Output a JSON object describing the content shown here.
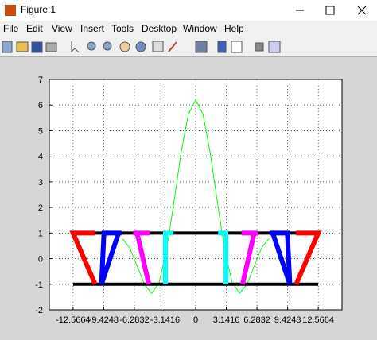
{
  "window": {
    "title": "Figure 1",
    "menu": [
      "File",
      "Edit",
      "View",
      "Insert",
      "Tools",
      "Desktop",
      "Window",
      "Help"
    ]
  },
  "chart_data": {
    "type": "line",
    "xlim": [
      -15,
      15
    ],
    "ylim": [
      -2,
      7
    ],
    "xticks": [
      -12.5664,
      -9.4248,
      -6.2832,
      -3.1416,
      0,
      3.1416,
      6.2832,
      9.4248,
      12.5664
    ],
    "yticks": [
      -2,
      -1,
      0,
      1,
      2,
      3,
      4,
      5,
      6,
      7
    ],
    "grid": true,
    "series": [
      {
        "color": "#00ff00",
        "width": 1,
        "x": [
          -7.5,
          -6.75,
          -6,
          -5.25,
          -4.5,
          -3.75,
          -3,
          -2.25,
          -1.5,
          -0.75,
          0,
          0.75,
          1.5,
          2.25,
          3,
          3.75,
          4.5,
          5.25,
          6,
          6.75,
          7.5
        ],
        "values": [
          0.78,
          0.41,
          -0.29,
          -1.01,
          -1.35,
          -0.94,
          0.29,
          2.14,
          4.12,
          5.64,
          6.2,
          5.64,
          4.12,
          2.14,
          0.29,
          -0.94,
          -1.35,
          -1.01,
          -0.29,
          0.41,
          0.78
        ]
      },
      {
        "color": "#000000",
        "width": 4,
        "x": [
          -12.5664,
          12.5664
        ],
        "values": [
          1,
          1
        ]
      },
      {
        "color": "#000000",
        "width": 4,
        "x": [
          -12.5664,
          12.5664
        ],
        "values": [
          -1,
          -1
        ]
      },
      {
        "color": "#ff0000",
        "width": 6,
        "x": [
          -10.3,
          -12.5664,
          -10.3
        ],
        "values": [
          1,
          1,
          -1
        ]
      },
      {
        "color": "#ff0000",
        "width": 6,
        "x": [
          10.3,
          12.5664,
          10.3
        ],
        "values": [
          1,
          1,
          -1
        ]
      },
      {
        "color": "#0000ff",
        "width": 6,
        "x": [
          -7.6,
          -9.4,
          -9.65,
          -7.9
        ],
        "values": [
          1,
          1,
          -1,
          1
        ]
      },
      {
        "color": "#0000ff",
        "width": 6,
        "x": [
          7.6,
          9.4,
          9.65,
          7.9
        ],
        "values": [
          1,
          1,
          -1,
          1
        ]
      },
      {
        "color": "#ff00ff",
        "width": 6,
        "x": [
          -4.7,
          -6.4,
          -6.0,
          -4.8
        ],
        "values": [
          1,
          1,
          1,
          -1
        ]
      },
      {
        "color": "#ff00ff",
        "width": 6,
        "x": [
          4.7,
          6.4,
          6.0,
          4.8
        ],
        "values": [
          1,
          1,
          1,
          -1
        ]
      },
      {
        "color": "#00ffff",
        "width": 6,
        "x": [
          -2.3,
          -3.1,
          -3.1
        ],
        "values": [
          1,
          1,
          -1
        ]
      },
      {
        "color": "#00ffff",
        "width": 6,
        "x": [
          2.3,
          3.1,
          3.1
        ],
        "values": [
          1,
          1,
          -1
        ]
      }
    ]
  }
}
